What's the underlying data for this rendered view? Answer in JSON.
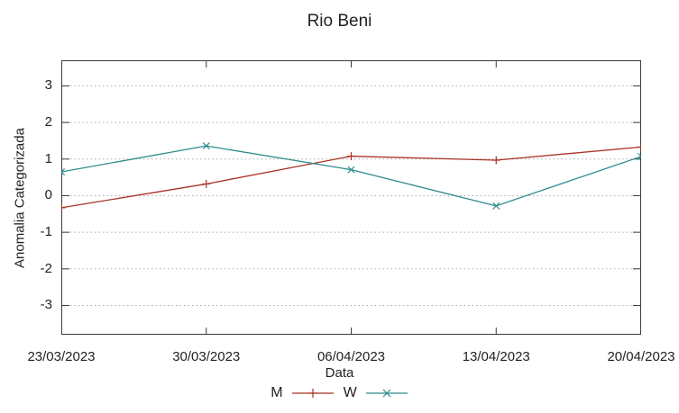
{
  "title": "Rio Beni",
  "chart_data": {
    "type": "line",
    "title": "Rio Beni",
    "xlabel": "Data",
    "ylabel": "Anomalia Categorizada",
    "categories": [
      "23/03/2023",
      "30/03/2023",
      "06/04/2023",
      "13/04/2023",
      "20/04/2023"
    ],
    "series": [
      {
        "name": "M",
        "color": "#a93226",
        "marker": "plus",
        "values": [
          -0.33,
          0.32,
          1.08,
          0.97,
          1.33
        ]
      },
      {
        "name": "W",
        "color": "#2e8b8b",
        "marker": "cross",
        "values": [
          0.65,
          1.36,
          0.71,
          -0.28,
          1.07
        ]
      }
    ],
    "ylim": [
      -3.8,
      3.7
    ],
    "yticks": [
      3,
      2,
      1,
      0,
      -1,
      -2,
      -3
    ],
    "grid": true,
    "grid_style": "dotted",
    "legend_position": "bottom-center",
    "colors": {
      "border": "#3a3a3a",
      "gridline": "#ababab",
      "text": "#222222"
    }
  }
}
